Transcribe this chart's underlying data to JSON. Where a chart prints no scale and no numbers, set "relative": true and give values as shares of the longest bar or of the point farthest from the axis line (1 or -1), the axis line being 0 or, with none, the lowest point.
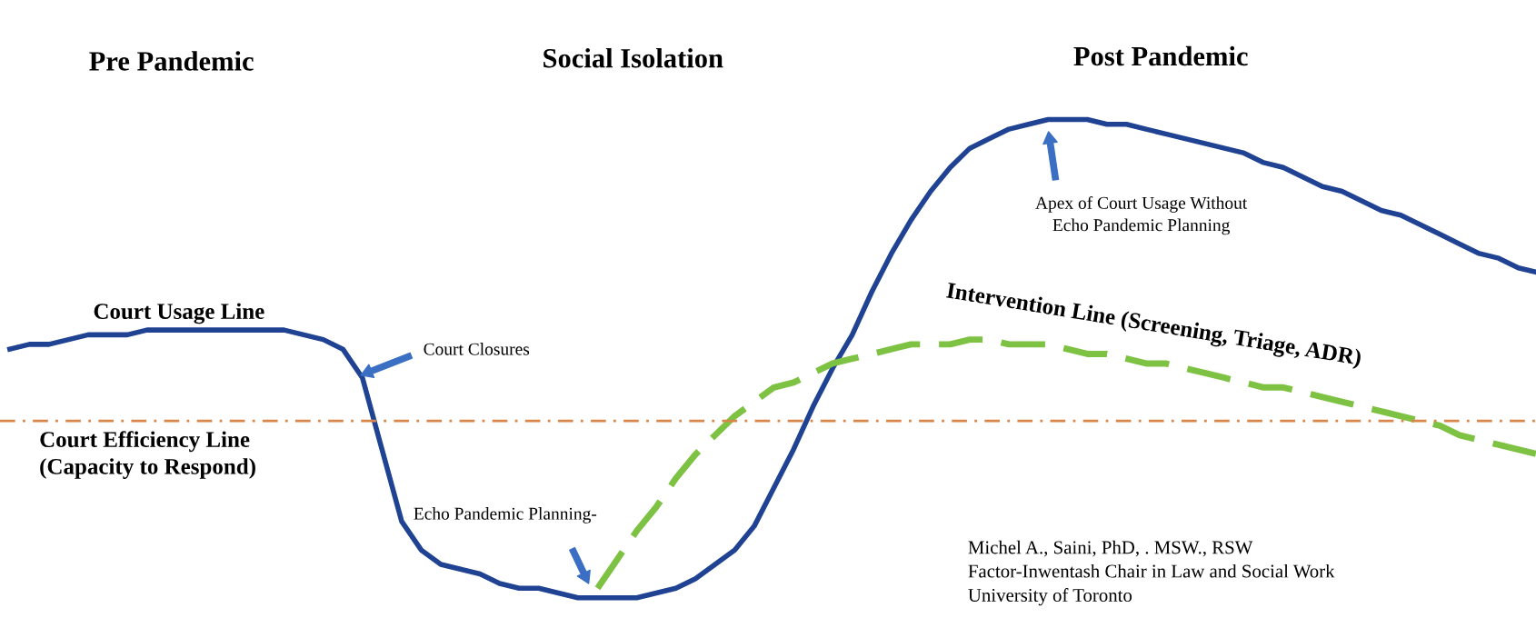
{
  "chart_data": {
    "type": "line",
    "relative": true,
    "categories": [
      null,
      null,
      null,
      null,
      null,
      null,
      null,
      null,
      null,
      null,
      null,
      null,
      null,
      null,
      null,
      null,
      null,
      null,
      null,
      null,
      null,
      null,
      null,
      null,
      null,
      null,
      null,
      null,
      null,
      null,
      null,
      null,
      null,
      null,
      null,
      null,
      null,
      null,
      null,
      null,
      null,
      null,
      null,
      null,
      null,
      null,
      null,
      null,
      null,
      null,
      null,
      null,
      null,
      null,
      null,
      null,
      null,
      null,
      null,
      null,
      null,
      null,
      null,
      null,
      null,
      null,
      null,
      null,
      null,
      null,
      null,
      null,
      null,
      null,
      null,
      null,
      null,
      null,
      null
    ],
    "series": [
      {
        "name": "Court Usage Line",
        "color": "#1f4293",
        "line_style": "solid",
        "values": [
          0.52,
          0.53,
          0.53,
          0.54,
          0.55,
          0.55,
          0.55,
          0.56,
          0.56,
          0.56,
          0.56,
          0.56,
          0.56,
          0.56,
          0.56,
          0.55,
          0.54,
          0.52,
          0.46,
          0.31,
          0.16,
          0.1,
          0.07,
          0.06,
          0.05,
          0.03,
          0.02,
          0.02,
          0.01,
          0.0,
          0.0,
          0.0,
          0.0,
          0.01,
          0.02,
          0.04,
          0.07,
          0.1,
          0.15,
          0.23,
          0.31,
          0.4,
          0.48,
          0.55,
          0.64,
          0.72,
          0.79,
          0.85,
          0.9,
          0.94,
          0.96,
          0.98,
          0.99,
          1.0,
          1.0,
          1.0,
          0.99,
          0.99,
          0.98,
          0.97,
          0.96,
          0.95,
          0.94,
          0.93,
          0.91,
          0.9,
          0.88,
          0.86,
          0.85,
          0.83,
          0.81,
          0.8,
          0.78,
          0.76,
          0.74,
          0.72,
          0.71,
          0.69,
          0.68
        ]
      },
      {
        "name": "Intervention Line (Screening, Triage, ADR)",
        "color": "#7dc242",
        "line_style": "dashed",
        "values": [
          null,
          null,
          null,
          null,
          null,
          null,
          null,
          null,
          null,
          null,
          null,
          null,
          null,
          null,
          null,
          null,
          null,
          null,
          null,
          null,
          null,
          null,
          null,
          null,
          null,
          null,
          null,
          null,
          null,
          null,
          0.02,
          0.08,
          0.14,
          0.19,
          0.25,
          0.3,
          0.34,
          0.38,
          0.41,
          0.44,
          0.45,
          0.47,
          0.49,
          0.5,
          0.51,
          0.52,
          0.53,
          0.53,
          0.53,
          0.54,
          0.54,
          0.53,
          0.53,
          0.53,
          0.52,
          0.51,
          0.51,
          0.5,
          0.49,
          0.49,
          0.48,
          0.47,
          0.46,
          0.45,
          0.44,
          0.44,
          0.43,
          0.42,
          0.41,
          0.4,
          0.39,
          0.38,
          0.37,
          0.36,
          0.34,
          0.33,
          0.32,
          0.31,
          0.3
        ]
      }
    ],
    "ref_lines": [
      {
        "axis": "y",
        "value": 0.37,
        "label": "Court Efficiency Line\n(Capacity to Respond)",
        "color": "#d9864a",
        "line_style": "dashdot"
      }
    ],
    "annotations": [
      "Pre Pandemic",
      "Social Isolation",
      "Post Pandemic",
      "Court Closures",
      "Echo Pandemic Planning-",
      "Apex of Court Usage Without\nEcho Pandemic Planning",
      "Michel A., Saini, PhD, . MSW., RSW\nFactor-Inwentash Chair in Law and Social Work\nUniversity of Toronto"
    ],
    "legend": false,
    "marker": "none"
  }
}
